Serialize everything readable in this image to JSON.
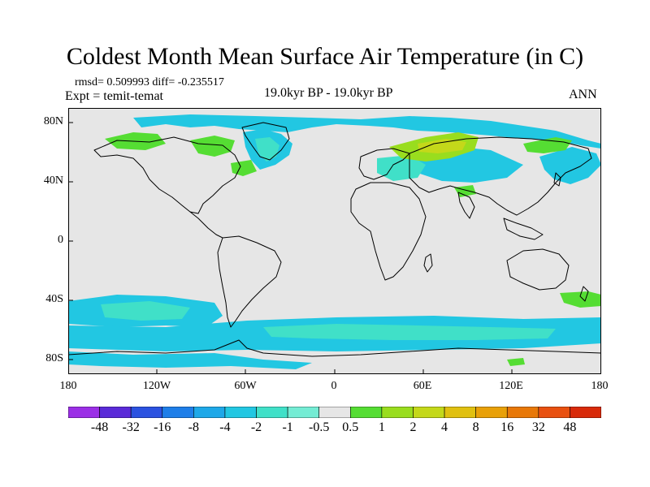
{
  "header": {
    "title": "Coldest Month Mean Surface Air Temperature (in C)",
    "stats": "rmsd= 0.509993 diff= -0.235517",
    "experiment": "Expt = temit-temat",
    "period": "19.0kyr BP - 19.0kyr BP",
    "season": "ANN"
  },
  "axes": {
    "lat_labels": [
      "80N",
      "40N",
      "0",
      "40S",
      "80S"
    ],
    "lat_values": [
      80,
      40,
      0,
      -40,
      -80
    ],
    "lon_labels": [
      "180",
      "120W",
      "60W",
      "0",
      "60E",
      "120E",
      "180"
    ],
    "lon_values": [
      -180,
      -120,
      -60,
      0,
      60,
      120,
      180
    ],
    "lat_range": [
      -90,
      90
    ],
    "lon_range": [
      -180,
      180
    ]
  },
  "colorbar": {
    "labels": [
      "-48",
      "-32",
      "-16",
      "-8",
      "-4",
      "-2",
      "-1",
      "-0.5",
      "0.5",
      "1",
      "2",
      "4",
      "8",
      "16",
      "32",
      "48"
    ],
    "colors": [
      "#9b2fe6",
      "#5a2ad8",
      "#2b52e0",
      "#1e7ee8",
      "#1ea8e8",
      "#22c7e2",
      "#40e0c8",
      "#74ecd4",
      "#e6e6e6",
      "#55dd33",
      "#99dd1e",
      "#c4d81a",
      "#e0c010",
      "#e8a008",
      "#e87808",
      "#e85010",
      "#d82a0a"
    ]
  },
  "map": {
    "background_color": "#e6e6e6",
    "coastline_color": "#000000"
  }
}
